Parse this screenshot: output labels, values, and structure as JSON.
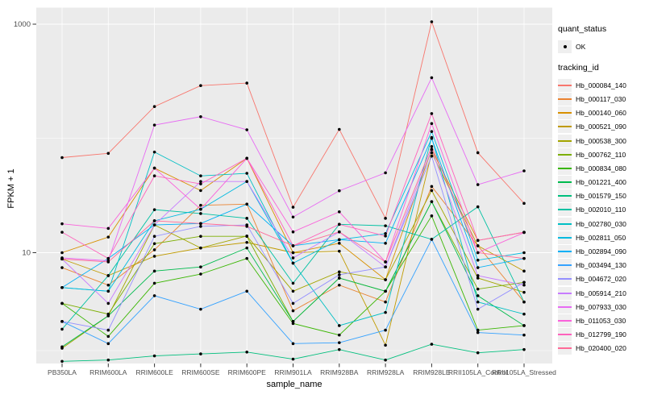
{
  "figure": {
    "y_axis_title": "FPKM + 1",
    "x_axis_title": "sample_name",
    "legend": {
      "quant_title": "quant_status",
      "quant_ok_label": "OK",
      "tracking_title": "tracking_id"
    },
    "colors": {
      "panel_bg": "#EBEBEB",
      "grid": "#FFFFFF",
      "tick_text": "#4D4D4D",
      "legend_key_bg": "#EFEFEF",
      "point": "#000000"
    }
  },
  "chart_data": {
    "type": "line",
    "title": "",
    "xlabel": "sample_name",
    "ylabel": "FPKM + 1",
    "y_scale": "log10",
    "ylim": [
      1.05,
      1200
    ],
    "y_breaks": [
      10,
      1000
    ],
    "y_break_labels": [
      "10",
      "1000"
    ],
    "grid": true,
    "legend_position": "right",
    "quant_status": "OK",
    "point_color": "#000000",
    "categories": [
      "PB350LA",
      "RRIM600LA",
      "RRIM600LE",
      "RRIM600SE",
      "RRIM600PE",
      "RRIM901LA",
      "RRIM928BA",
      "RRIM928LA",
      "RRIM928LE",
      "RRII105LA_Control",
      "RRII105LA_Stressed"
    ],
    "series": [
      {
        "name": "Hb_000084_140",
        "color": "#F8766D",
        "values": [
          68,
          74,
          190,
          290,
          305,
          25,
          120,
          20,
          1050,
          75,
          27
        ]
      },
      {
        "name": "Hb_000117_030",
        "color": "#EA8331",
        "values": [
          7.4,
          5.2,
          10.6,
          26,
          26.6,
          3.1,
          5.2,
          3.7,
          38,
          11.5,
          3.7
        ]
      },
      {
        "name": "Hb_000140_060",
        "color": "#D89000",
        "values": [
          10,
          13.7,
          55,
          35,
          67,
          10,
          12.1,
          5.8,
          80,
          12.8,
          15.1
        ]
      },
      {
        "name": "Hb_000521_090",
        "color": "#C09B00",
        "values": [
          8.8,
          6.3,
          9.3,
          11,
          12.3,
          10,
          10.3,
          1.55,
          75,
          11.5,
          6.9
        ]
      },
      {
        "name": "Hb_000538_300",
        "color": "#A3A500",
        "values": [
          1.46,
          2.8,
          17.5,
          11,
          14,
          4.6,
          6.8,
          5.8,
          35,
          6,
          4.5
        ]
      },
      {
        "name": "Hb_000762_110",
        "color": "#7CAE00",
        "values": [
          3.6,
          2.9,
          12,
          13.9,
          13.9,
          2.5,
          6,
          4.6,
          28,
          4.8,
          5.5
        ]
      },
      {
        "name": "Hb_000834_080",
        "color": "#39B600",
        "values": [
          3.6,
          1.85,
          5.4,
          6.5,
          8.9,
          2.4,
          1.9,
          4.6,
          21,
          2.1,
          2.3
        ]
      },
      {
        "name": "Hb_001221_400",
        "color": "#00BB4E",
        "values": [
          1.5,
          2.8,
          6.9,
          7.5,
          11,
          2.5,
          6,
          4.6,
          28,
          4.2,
          2.3
        ]
      },
      {
        "name": "Hb_001579_150",
        "color": "#00BF7D",
        "values": [
          1.12,
          1.15,
          1.25,
          1.3,
          1.35,
          1.17,
          1.42,
          1.15,
          1.58,
          1.33,
          1.42
        ]
      },
      {
        "name": "Hb_002010_110",
        "color": "#00C1A3",
        "values": [
          2.14,
          6.3,
          23.8,
          22,
          20,
          5.4,
          17.7,
          17.2,
          13.1,
          25.2,
          3.7
        ]
      },
      {
        "name": "Hb_002780_030",
        "color": "#00BFC4",
        "values": [
          4.95,
          4.6,
          76,
          47,
          49.5,
          8.1,
          2.3,
          3,
          102,
          3.7,
          2.9
        ]
      },
      {
        "name": "Hb_002811_050",
        "color": "#00BAE0",
        "values": [
          4.95,
          4.6,
          19,
          24,
          42,
          8.1,
          13,
          14.7,
          115,
          8.6,
          10
        ]
      },
      {
        "name": "Hb_002894_090",
        "color": "#00B0F6",
        "values": [
          4.95,
          8.9,
          17.5,
          18,
          26.6,
          11.5,
          13,
          12.1,
          100,
          7.4,
          8.9
        ]
      },
      {
        "name": "Hb_003494_130",
        "color": "#35A2FF",
        "values": [
          2.5,
          1.6,
          4.2,
          3.2,
          4.6,
          1.6,
          1.63,
          2.1,
          13.1,
          2,
          1.9
        ]
      },
      {
        "name": "Hb_004672_020",
        "color": "#9590FF",
        "values": [
          2.5,
          2.1,
          13.9,
          17,
          17.5,
          3.6,
          6.4,
          7.5,
          70,
          3.2,
          5.5
        ]
      },
      {
        "name": "Hb_005914_210",
        "color": "#C77CFF",
        "values": [
          8.8,
          3.6,
          17.5,
          42,
          42,
          9,
          15.2,
          7.5,
          80,
          6.3,
          5.2
        ]
      },
      {
        "name": "Hb_007933_030",
        "color": "#E76BF3",
        "values": [
          9,
          8.5,
          131,
          155,
          119,
          20.5,
          34.8,
          50,
          340,
          39.4,
          52
        ]
      },
      {
        "name": "Hb_011053_030",
        "color": "#FA62DB",
        "values": [
          17.9,
          16.3,
          55,
          24,
          67,
          15.2,
          22.8,
          8.3,
          135,
          10,
          15
        ]
      },
      {
        "name": "Hb_012799_190",
        "color": "#FF62BC",
        "values": [
          15.1,
          8.9,
          47,
          40,
          67,
          11.5,
          17.7,
          14,
          165,
          12.8,
          15.1
        ]
      },
      {
        "name": "Hb_020400_020",
        "color": "#FF6A98",
        "values": [
          8.8,
          8.3,
          19,
          18,
          17,
          11.5,
          15.2,
          8.3,
          85,
          10,
          8.9
        ]
      }
    ]
  }
}
